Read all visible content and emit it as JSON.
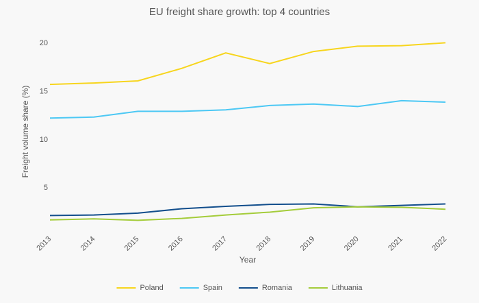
{
  "chart_data": {
    "type": "line",
    "title": "EU freight share growth: top 4 countries",
    "x_label": "Year",
    "y_label": "Freight volume share (%)",
    "x": [
      2013,
      2014,
      2015,
      2016,
      2017,
      2018,
      2019,
      2020,
      2021,
      2022
    ],
    "xlim": [
      2013,
      2022
    ],
    "xticks": [
      2013,
      2014,
      2015,
      2016,
      2017,
      2018,
      2019,
      2020,
      2021,
      2022
    ],
    "ylim": [
      0.4,
      21.5
    ],
    "yticks": [
      5,
      10,
      15,
      20
    ],
    "grid": false,
    "legend": "bottom",
    "series": [
      {
        "name": "Poland",
        "color": "#f7d51d",
        "values": [
          15.74,
          15.88,
          16.1,
          17.4,
          19.0,
          17.9,
          19.15,
          19.7,
          19.75,
          20.05
        ]
      },
      {
        "name": "Spain",
        "color": "#4cc8f4",
        "values": [
          12.25,
          12.35,
          12.95,
          12.95,
          13.1,
          13.55,
          13.7,
          13.45,
          14.05,
          13.9
        ]
      },
      {
        "name": "Romania",
        "color": "#124e8c",
        "values": [
          2.15,
          2.2,
          2.4,
          2.85,
          3.1,
          3.3,
          3.35,
          3.05,
          3.2,
          3.35
        ]
      },
      {
        "name": "Lithuania",
        "color": "#a4cc3a",
        "values": [
          1.7,
          1.8,
          1.65,
          1.85,
          2.2,
          2.5,
          2.95,
          3.05,
          3.0,
          2.8
        ]
      }
    ]
  }
}
